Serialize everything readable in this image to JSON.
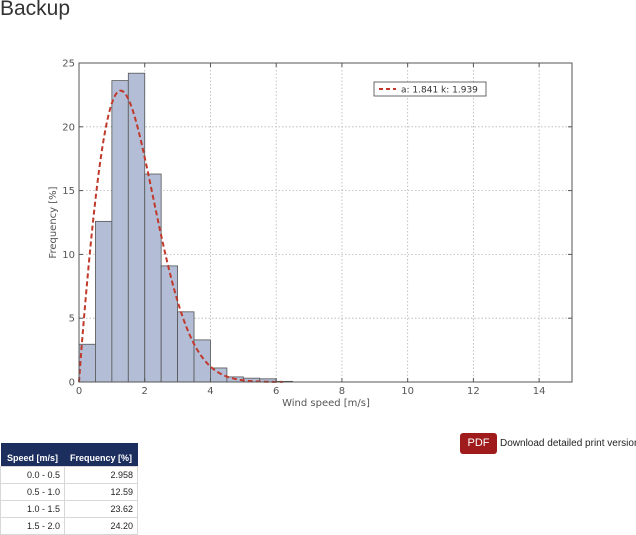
{
  "page_title": "Backup",
  "chart_data": {
    "type": "bar",
    "xlabel": "Wind speed [m/s]",
    "ylabel": "Frequency [%]",
    "xlim": [
      0,
      15
    ],
    "ylim": [
      0,
      25
    ],
    "xticks": [
      0,
      2,
      4,
      6,
      8,
      10,
      12,
      14
    ],
    "yticks": [
      0,
      5,
      10,
      15,
      20,
      25
    ],
    "grid": true,
    "bin_width": 0.5,
    "bins": [
      {
        "start": 0.0,
        "value": 2.958
      },
      {
        "start": 0.5,
        "value": 12.59
      },
      {
        "start": 1.0,
        "value": 23.62
      },
      {
        "start": 1.5,
        "value": 24.2
      },
      {
        "start": 2.0,
        "value": 16.3
      },
      {
        "start": 2.5,
        "value": 9.1
      },
      {
        "start": 3.0,
        "value": 5.5
      },
      {
        "start": 3.5,
        "value": 3.3
      },
      {
        "start": 4.0,
        "value": 1.1
      },
      {
        "start": 4.5,
        "value": 0.4
      },
      {
        "start": 5.0,
        "value": 0.3
      },
      {
        "start": 5.5,
        "value": 0.25
      },
      {
        "start": 6.0,
        "value": 0.05
      }
    ],
    "bar_color": "#b3bdd6",
    "bar_edge": "#555555",
    "fit": {
      "type": "weibull",
      "a": 1.841,
      "k": 1.939,
      "color": "#c0392b",
      "legend_label": "a: 1.841  k: 1.939"
    },
    "legend_position": "top-right"
  },
  "pdf": {
    "button_label": "PDF",
    "link_text": "Download detailed print version"
  },
  "table": {
    "headers": [
      "Speed [m/s]",
      "Frequency [%]"
    ],
    "rows": [
      [
        "0.0 - 0.5",
        "2.958"
      ],
      [
        "0.5 - 1.0",
        "12.59"
      ],
      [
        "1.0 - 1.5",
        "23.62"
      ],
      [
        "1.5 - 2.0",
        "24.20"
      ]
    ]
  }
}
